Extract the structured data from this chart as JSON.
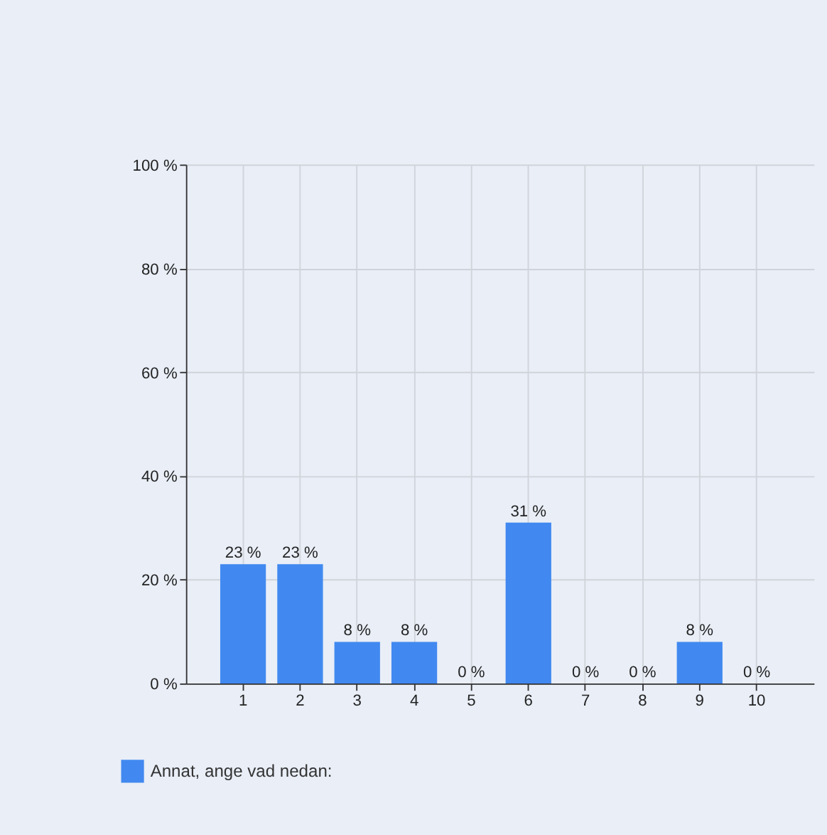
{
  "chart_data": {
    "type": "bar",
    "categories": [
      "1",
      "2",
      "3",
      "4",
      "5",
      "6",
      "7",
      "8",
      "9",
      "10"
    ],
    "series": [
      {
        "name": "Annat, ange vad nedan:",
        "color": "#4189f0",
        "values": [
          23,
          23,
          8,
          8,
          0,
          31,
          0,
          0,
          8,
          0
        ],
        "value_labels": [
          "23 %",
          "23 %",
          "8 %",
          "8 %",
          "0 %",
          "31 %",
          "0 %",
          "0 %",
          "8 %",
          "0 %"
        ]
      }
    ],
    "ylim": [
      0,
      100
    ],
    "yticks": [
      {
        "value": 0,
        "label": "0 %"
      },
      {
        "value": 20,
        "label": "20 %"
      },
      {
        "value": 40,
        "label": "40 %"
      },
      {
        "value": 60,
        "label": "60 %"
      },
      {
        "value": 80,
        "label": "80 %"
      },
      {
        "value": 100,
        "label": "100 %"
      }
    ],
    "grid": true,
    "legend": "bottom left"
  }
}
